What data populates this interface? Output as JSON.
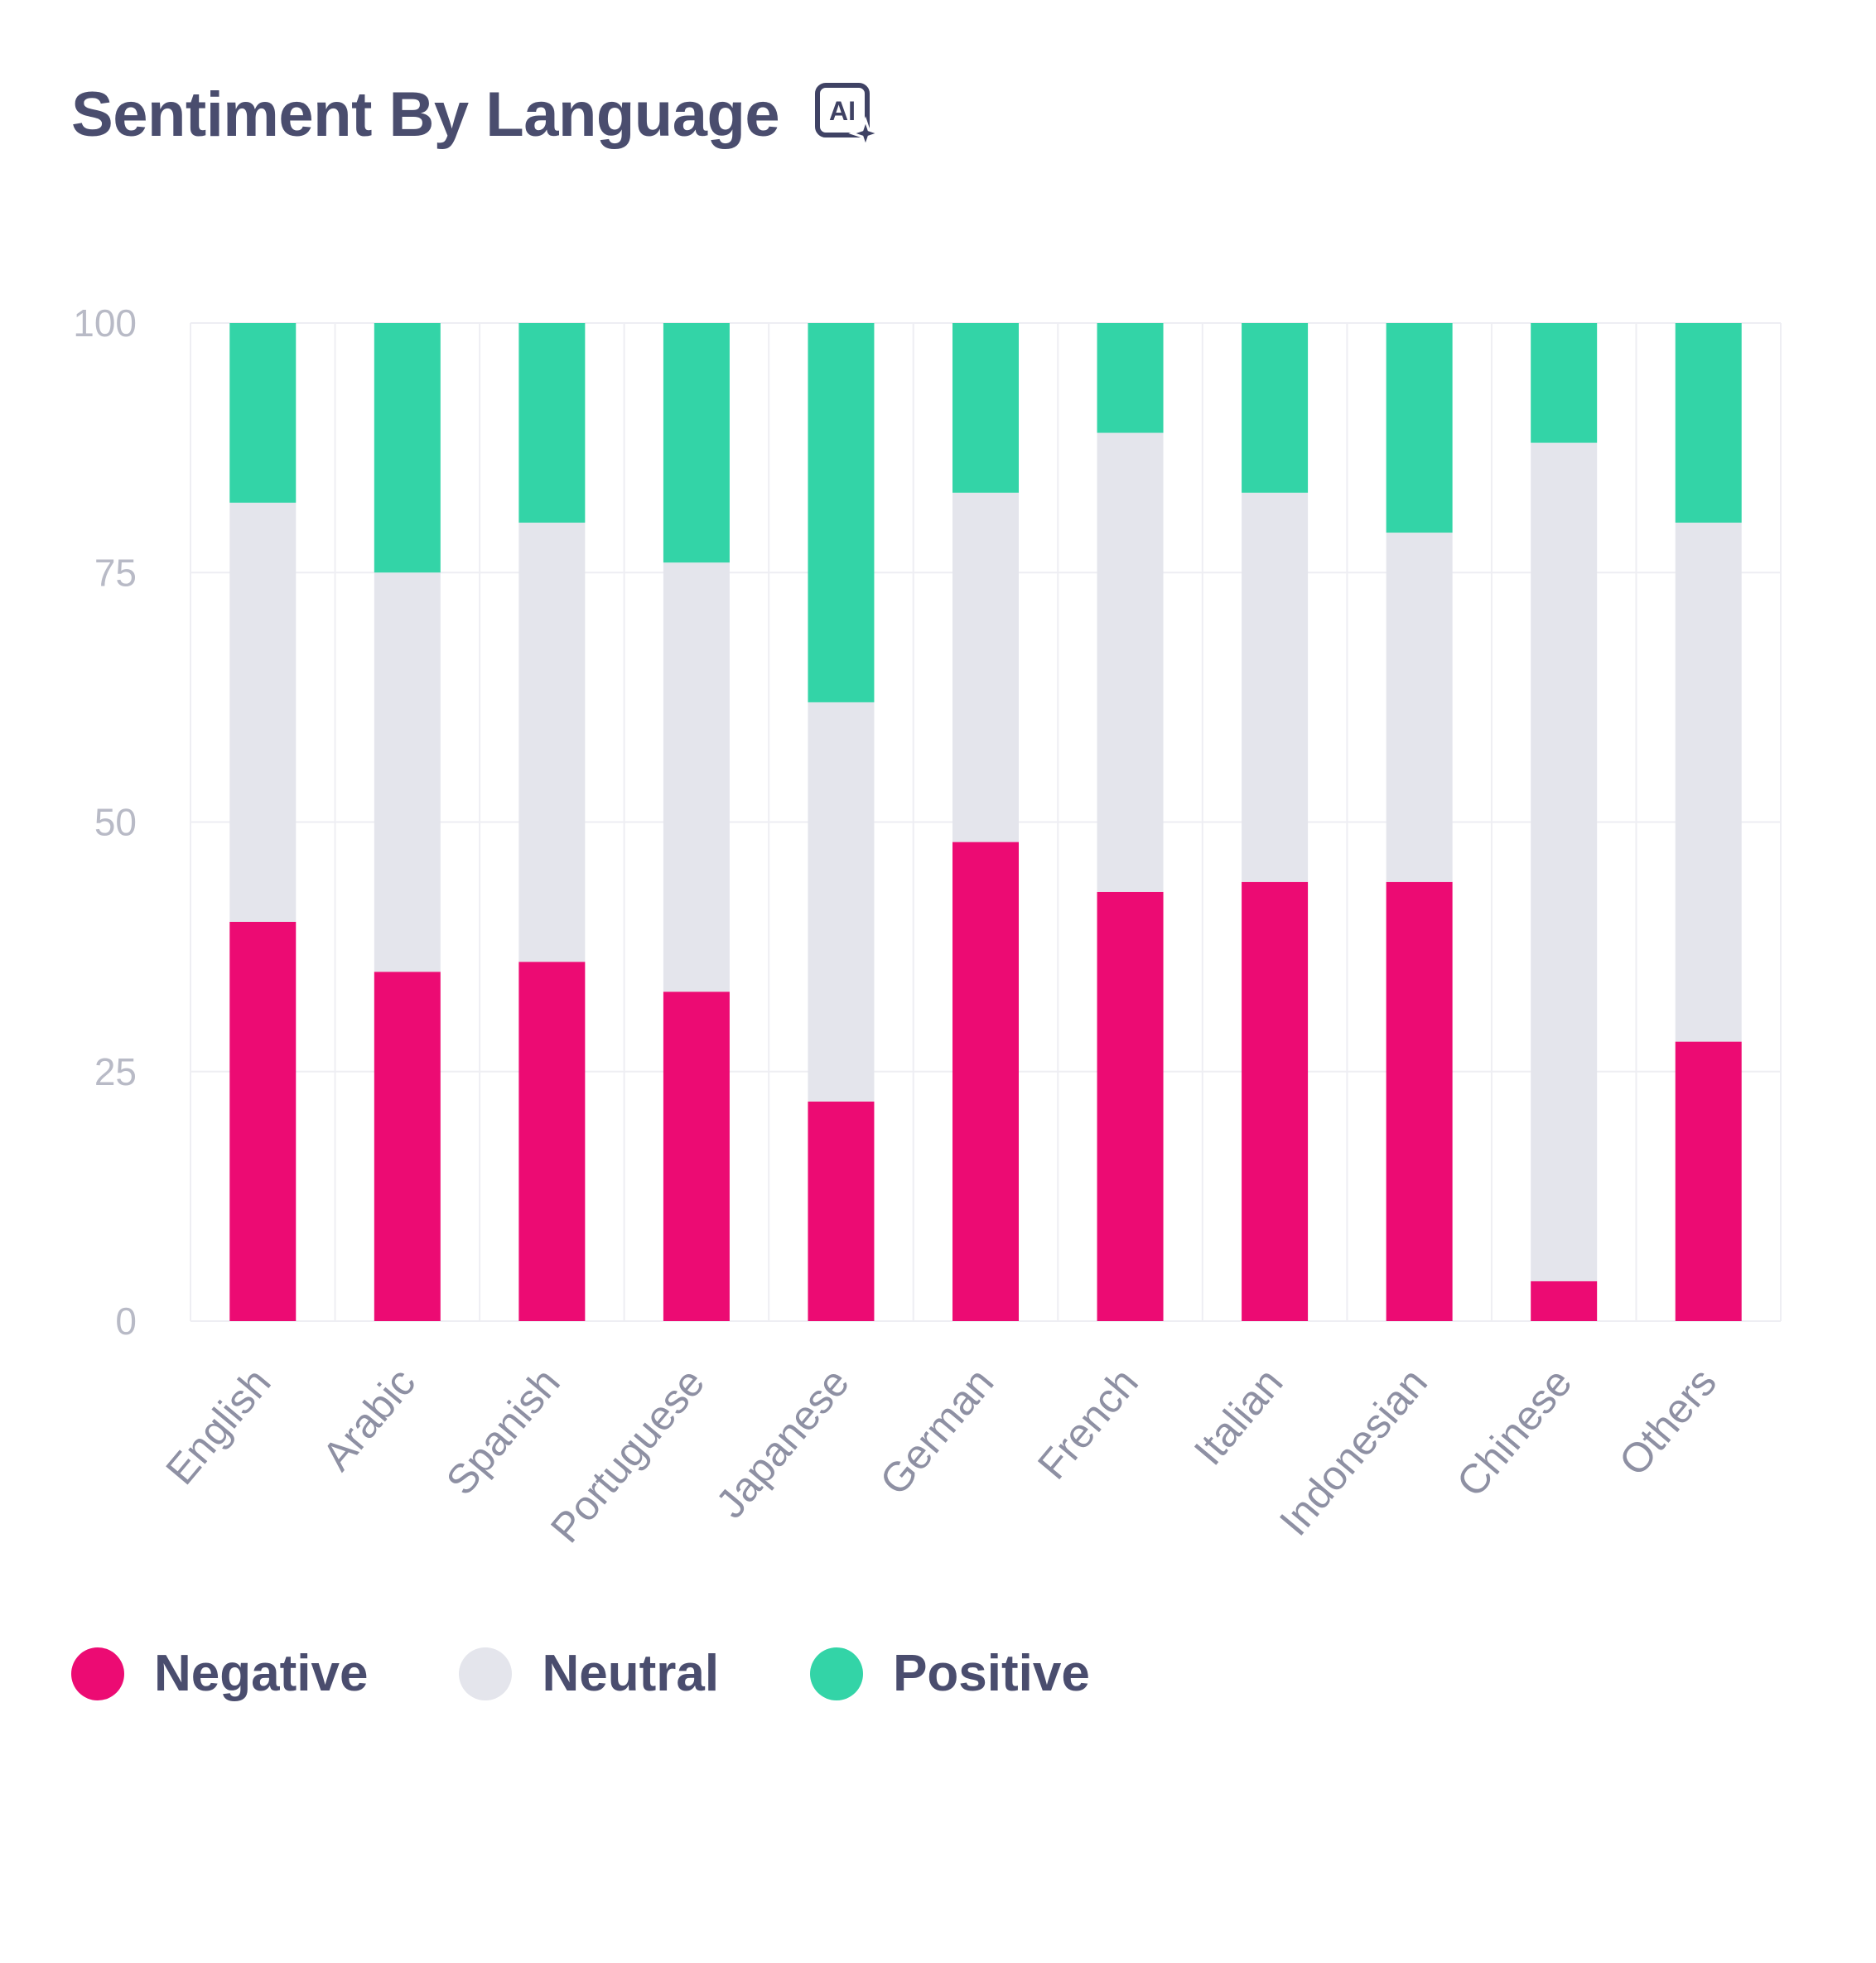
{
  "header": {
    "title": "Sentiment By Language",
    "ai_badge_text": "AI"
  },
  "colors": {
    "negative": "#ec0b73",
    "neutral": "#e4e5ec",
    "positive": "#33d4a7",
    "grid": "#eeeef3",
    "title": "#4a4d6e"
  },
  "chart_data": {
    "type": "bar",
    "stacked": true,
    "title": "Sentiment By Language",
    "xlabel": "",
    "ylabel": "",
    "ylim": [
      0,
      100
    ],
    "yticks": [
      0,
      25,
      50,
      75,
      100
    ],
    "grid": true,
    "legend_position": "bottom-left",
    "categories": [
      "English",
      "Arabic",
      "Spanish",
      "Portuguese",
      "Japanese",
      "German",
      "French",
      "Italian",
      "Indonesian",
      "Chinese",
      "Others"
    ],
    "series": [
      {
        "name": "Negative",
        "color": "#ec0b73",
        "values": [
          40,
          35,
          36,
          33,
          22,
          48,
          43,
          44,
          44,
          4,
          28
        ]
      },
      {
        "name": "Neutral",
        "color": "#e4e5ec",
        "values": [
          42,
          40,
          44,
          43,
          40,
          35,
          46,
          39,
          35,
          84,
          52
        ]
      },
      {
        "name": "Positive",
        "color": "#33d4a7",
        "values": [
          18,
          25,
          20,
          24,
          38,
          17,
          11,
          17,
          21,
          12,
          20
        ]
      }
    ]
  }
}
